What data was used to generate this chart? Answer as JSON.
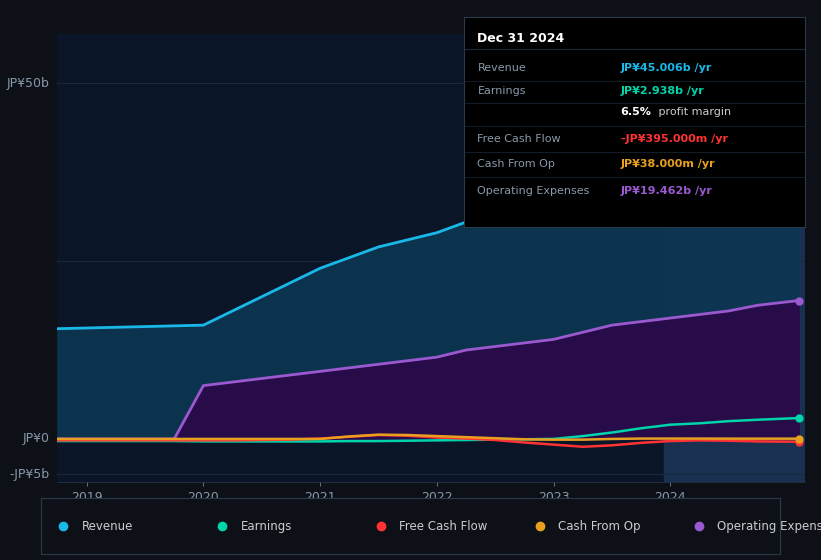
{
  "background_color": "#0d1117",
  "plot_bg_color": "#0a1628",
  "grid_color": "#1a2a3a",
  "ylim": [
    -6,
    57
  ],
  "xlim_start": 2018.75,
  "xlim_end": 2025.15,
  "xticks": [
    2019,
    2020,
    2021,
    2022,
    2023,
    2024
  ],
  "ytick_50b_label": "JP¥50b",
  "ytick_0_label": "JP¥0",
  "ytick_neg5_label": "-JP¥5b",
  "highlight_x_start": 2023.95,
  "highlight_x_end": 2025.15,
  "highlight_color": "#1a3050",
  "series": {
    "revenue": {
      "color": "#1ab8e8",
      "fill_color": "#0d3550",
      "fill_alpha": 0.95,
      "label": "Revenue",
      "x": [
        2018.75,
        2019.0,
        2019.25,
        2019.5,
        2019.75,
        2020.0,
        2020.25,
        2020.5,
        2020.75,
        2021.0,
        2021.25,
        2021.5,
        2021.75,
        2022.0,
        2022.25,
        2022.5,
        2022.75,
        2023.0,
        2023.25,
        2023.5,
        2023.75,
        2024.0,
        2024.25,
        2024.5,
        2024.75,
        2025.1
      ],
      "y": [
        15.5,
        15.6,
        15.7,
        15.8,
        15.9,
        16.0,
        18.0,
        20.0,
        22.0,
        24.0,
        25.5,
        27.0,
        28.0,
        29.0,
        30.5,
        31.5,
        32.0,
        33.0,
        34.0,
        35.0,
        36.0,
        37.5,
        39.0,
        41.0,
        43.5,
        45.0
      ]
    },
    "operating_expenses": {
      "color": "#9b59d0",
      "fill_color": "#2a0a4a",
      "fill_alpha": 0.95,
      "label": "Operating Expenses",
      "x": [
        2018.75,
        2019.0,
        2019.25,
        2019.5,
        2019.75,
        2020.0,
        2020.25,
        2020.5,
        2020.75,
        2021.0,
        2021.25,
        2021.5,
        2021.75,
        2022.0,
        2022.25,
        2022.5,
        2022.75,
        2023.0,
        2023.25,
        2023.5,
        2023.75,
        2024.0,
        2024.25,
        2024.5,
        2024.75,
        2025.1
      ],
      "y": [
        0.0,
        0.0,
        0.0,
        0.0,
        0.0,
        7.5,
        8.0,
        8.5,
        9.0,
        9.5,
        10.0,
        10.5,
        11.0,
        11.5,
        12.5,
        13.0,
        13.5,
        14.0,
        15.0,
        16.0,
        16.5,
        17.0,
        17.5,
        18.0,
        18.8,
        19.462
      ]
    },
    "earnings": {
      "color": "#00d4aa",
      "label": "Earnings",
      "x": [
        2018.75,
        2019.0,
        2019.25,
        2019.5,
        2019.75,
        2020.0,
        2020.25,
        2020.5,
        2020.75,
        2021.0,
        2021.25,
        2021.5,
        2021.75,
        2022.0,
        2022.25,
        2022.5,
        2022.75,
        2023.0,
        2023.25,
        2023.5,
        2023.75,
        2024.0,
        2024.25,
        2024.5,
        2024.75,
        2025.1
      ],
      "y": [
        -0.3,
        -0.3,
        -0.3,
        -0.3,
        -0.3,
        -0.35,
        -0.35,
        -0.35,
        -0.35,
        -0.35,
        -0.3,
        -0.3,
        -0.25,
        -0.2,
        -0.15,
        -0.1,
        -0.05,
        0.0,
        0.4,
        0.9,
        1.5,
        2.0,
        2.2,
        2.5,
        2.7,
        2.938
      ]
    },
    "free_cash_flow": {
      "color": "#ff3333",
      "label": "Free Cash Flow",
      "x": [
        2018.75,
        2019.0,
        2019.25,
        2019.5,
        2019.75,
        2020.0,
        2020.25,
        2020.5,
        2020.75,
        2021.0,
        2021.25,
        2021.5,
        2021.75,
        2022.0,
        2022.25,
        2022.5,
        2022.75,
        2023.0,
        2023.25,
        2023.5,
        2023.75,
        2024.0,
        2024.25,
        2024.5,
        2024.75,
        2025.1
      ],
      "y": [
        -0.2,
        -0.2,
        -0.2,
        -0.2,
        -0.2,
        -0.2,
        -0.2,
        -0.15,
        -0.1,
        0.05,
        0.3,
        0.55,
        0.45,
        0.2,
        0.05,
        -0.15,
        -0.5,
        -0.8,
        -1.1,
        -0.9,
        -0.55,
        -0.3,
        -0.2,
        -0.25,
        -0.35,
        -0.395
      ]
    },
    "cash_from_op": {
      "color": "#e8a020",
      "label": "Cash From Op",
      "x": [
        2018.75,
        2019.0,
        2019.25,
        2019.5,
        2019.75,
        2020.0,
        2020.25,
        2020.5,
        2020.75,
        2021.0,
        2021.25,
        2021.5,
        2021.75,
        2022.0,
        2022.25,
        2022.5,
        2022.75,
        2023.0,
        2023.25,
        2023.5,
        2023.75,
        2024.0,
        2024.25,
        2024.5,
        2024.75,
        2025.1
      ],
      "y": [
        0.0,
        0.0,
        0.0,
        0.0,
        0.0,
        0.0,
        0.0,
        0.0,
        0.0,
        0.0,
        0.35,
        0.6,
        0.55,
        0.4,
        0.25,
        0.1,
        -0.05,
        -0.1,
        -0.1,
        0.0,
        0.05,
        0.05,
        0.05,
        0.04,
        0.038,
        0.038
      ]
    }
  },
  "tooltip": {
    "title": "Dec 31 2024",
    "bg_color": "#000000",
    "border_color": "#2a3a4a",
    "title_color": "#ffffff",
    "label_color": "#8899aa",
    "divider_color": "#1a2a3a",
    "rows": [
      {
        "label": "Revenue",
        "value": "JP¥45.006b /yr",
        "value_color": "#1ab8e8",
        "bold_prefix": null
      },
      {
        "label": "Earnings",
        "value": "JP¥2.938b /yr",
        "value_color": "#00d4aa",
        "bold_prefix": null
      },
      {
        "label": "",
        "value": " profit margin",
        "value_color": "#cccccc",
        "bold_prefix": "6.5%"
      },
      {
        "label": "Free Cash Flow",
        "value": "-JP¥395.000m /yr",
        "value_color": "#ff3333",
        "bold_prefix": null
      },
      {
        "label": "Cash From Op",
        "value": "JP¥38.000m /yr",
        "value_color": "#e8a020",
        "bold_prefix": null
      },
      {
        "label": "Operating Expenses",
        "value": "JP¥19.462b /yr",
        "value_color": "#9b59d0",
        "bold_prefix": null
      }
    ]
  },
  "legend": {
    "items": [
      {
        "label": "Revenue",
        "color": "#1ab8e8"
      },
      {
        "label": "Earnings",
        "color": "#00d4aa"
      },
      {
        "label": "Free Cash Flow",
        "color": "#ff3333"
      },
      {
        "label": "Cash From Op",
        "color": "#e8a020"
      },
      {
        "label": "Operating Expenses",
        "color": "#9b59d0"
      }
    ]
  }
}
